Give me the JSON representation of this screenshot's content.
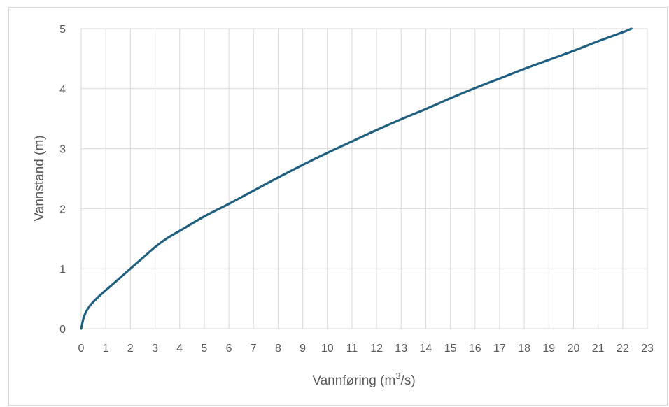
{
  "chart_data": {
    "type": "line",
    "xlabel": "Vannføring (m",
    "xlabel_sup": "3",
    "xlabel_suffix": "/s)",
    "ylabel": "Vannstand (m)",
    "xlim": [
      0,
      23
    ],
    "ylim": [
      0,
      5
    ],
    "xticks": [
      0,
      1,
      2,
      3,
      4,
      5,
      6,
      7,
      8,
      9,
      10,
      11,
      12,
      13,
      14,
      15,
      16,
      17,
      18,
      19,
      20,
      21,
      22,
      23
    ],
    "yticks": [
      0,
      1,
      2,
      3,
      4,
      5
    ],
    "grid": true,
    "legend": "none",
    "series": [
      {
        "color": "#1f5f7f",
        "x": [
          0,
          0.1,
          0.2,
          0.35,
          0.5,
          0.8,
          1.0,
          1.5,
          2.0,
          2.5,
          3.0,
          3.5,
          4.0,
          5.0,
          6.0,
          7.0,
          8.0,
          9.0,
          10.0,
          11.0,
          12.0,
          13.0,
          14.0,
          15.0,
          16.0,
          17.0,
          18.0,
          19.0,
          20.0,
          21.0,
          22.0,
          22.35
        ],
        "y": [
          0,
          0.18,
          0.28,
          0.38,
          0.45,
          0.57,
          0.64,
          0.82,
          1.0,
          1.18,
          1.36,
          1.51,
          1.63,
          1.87,
          2.08,
          2.3,
          2.52,
          2.73,
          2.93,
          3.12,
          3.31,
          3.49,
          3.66,
          3.84,
          4.01,
          4.17,
          4.33,
          4.48,
          4.63,
          4.79,
          4.94,
          5.0
        ]
      }
    ]
  }
}
